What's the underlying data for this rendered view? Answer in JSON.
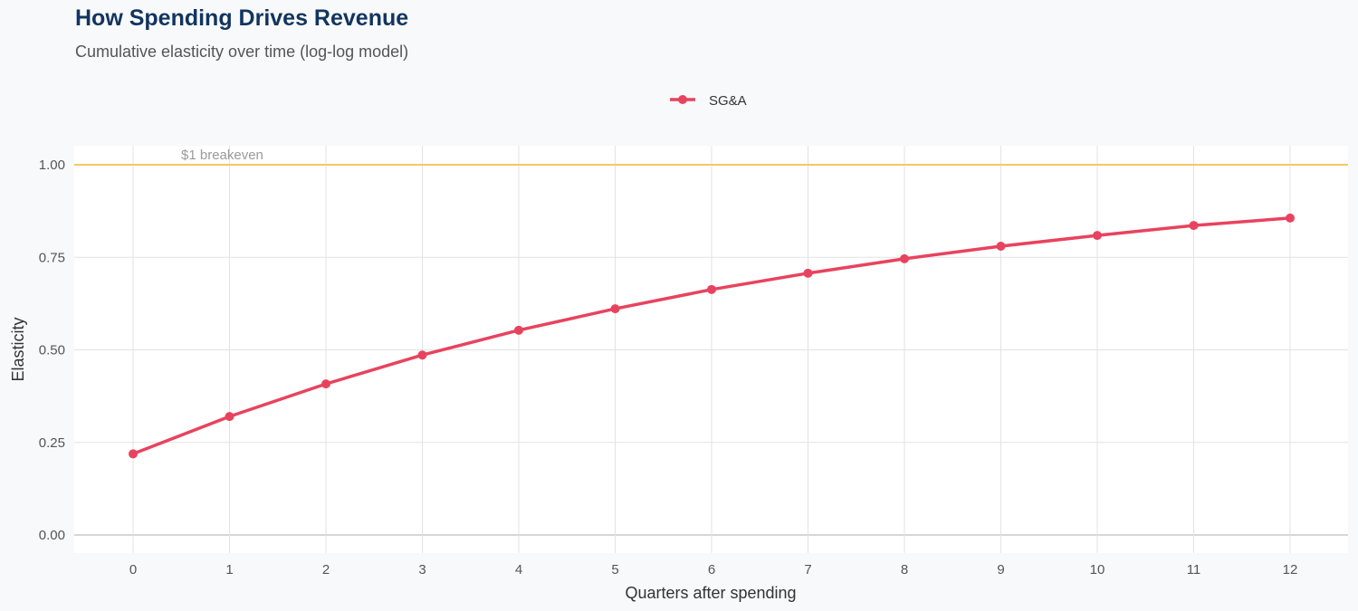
{
  "chart_data": {
    "type": "line",
    "title": "How Spending Drives Revenue",
    "subtitle": "Cumulative elasticity over time (log-log model)",
    "xlabel": "Quarters after spending",
    "ylabel": "Elasticity",
    "x": [
      0,
      1,
      2,
      3,
      4,
      5,
      6,
      7,
      8,
      9,
      10,
      11,
      12
    ],
    "series": [
      {
        "name": "SG&A",
        "color": "#e8435e",
        "values": [
          0.219,
          0.32,
          0.408,
          0.486,
          0.553,
          0.611,
          0.663,
          0.707,
          0.746,
          0.78,
          0.809,
          0.836,
          0.856
        ]
      }
    ],
    "xlim": [
      -0.6,
      12.6
    ],
    "ylim": [
      -0.05,
      1.05
    ],
    "xticks": [
      "0",
      "1",
      "2",
      "3",
      "4",
      "5",
      "6",
      "7",
      "8",
      "9",
      "10",
      "11",
      "12"
    ],
    "yticks": [
      "0.00",
      "0.25",
      "0.50",
      "0.75",
      "1.00"
    ],
    "reference_line": {
      "y": 1.0,
      "label": "$1 breakeven",
      "color": "#f5c862"
    },
    "legend_position": "top",
    "grid": true
  }
}
